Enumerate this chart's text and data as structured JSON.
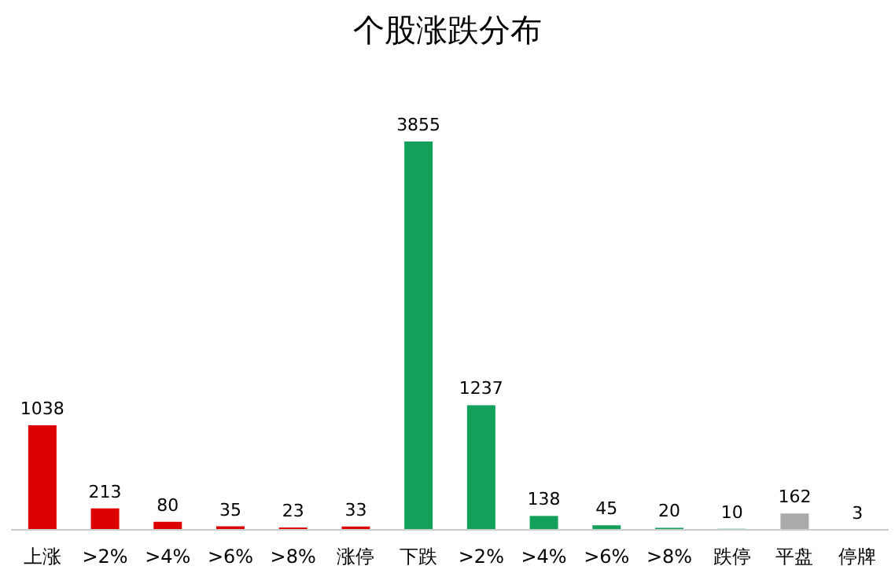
{
  "chart_data": {
    "type": "bar",
    "title": "个股涨跌分布",
    "categories": [
      "上涨",
      ">2%",
      ">4%",
      ">6%",
      ">8%",
      "涨停",
      "下跌",
      ">2%",
      ">4%",
      ">6%",
      ">8%",
      "跌停",
      "平盘",
      "停牌"
    ],
    "values": [
      1038,
      213,
      80,
      35,
      23,
      33,
      3855,
      1237,
      138,
      45,
      20,
      10,
      162,
      3
    ],
    "colors": [
      "#dd0000",
      "#dd0000",
      "#dd0000",
      "#dd0000",
      "#dd0000",
      "#dd0000",
      "#13a05a",
      "#13a05a",
      "#13a05a",
      "#13a05a",
      "#13a05a",
      "#13a05a",
      "#aaaaaa",
      "#555555"
    ],
    "data_labels": true
  }
}
